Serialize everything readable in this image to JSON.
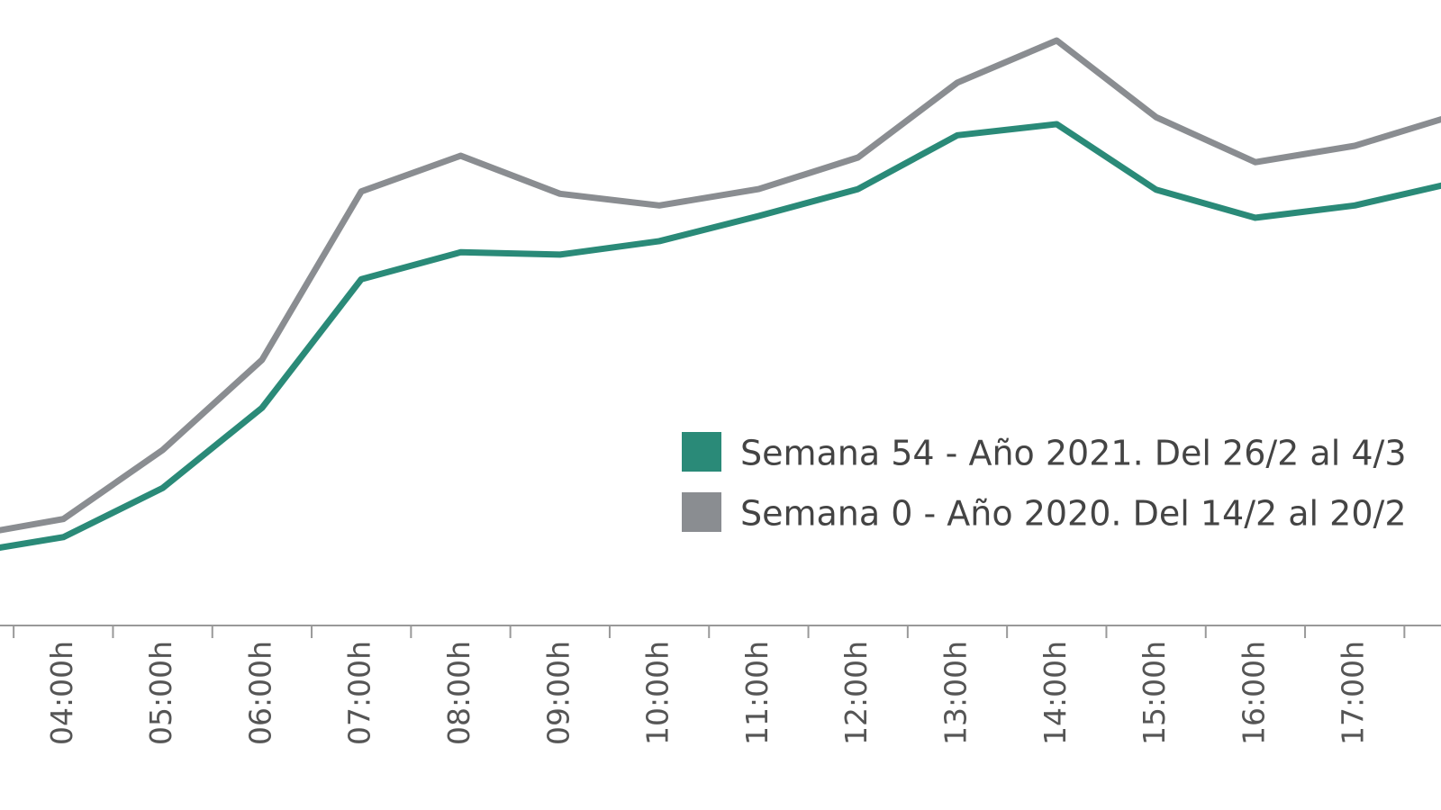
{
  "chart_data": {
    "type": "line",
    "categories": [
      null,
      "04:00h",
      "05:00h",
      "06:00h",
      "07:00h",
      "08:00h",
      "09:00h",
      "10:00h",
      "11:00h",
      "12:00h",
      "13:00h",
      "14:00h",
      "15:00h",
      "16:00h",
      "17:00h",
      null
    ],
    "series": [
      {
        "name": "Semana 54 - Año 2021. Del 26/2 al 4/3",
        "color": "#2a8a78",
        "values": [
          12.3,
          15.1,
          23.5,
          37.2,
          59.2,
          63.8,
          63.4,
          65.7,
          70,
          74.6,
          83.8,
          85.7,
          74.5,
          69.7,
          71.8,
          75.7
        ]
      },
      {
        "name": "Semana 0 - Año 2020. Del 14/2 al 20/2",
        "color": "#8a8d91",
        "values": [
          15.2,
          18.2,
          30,
          45.4,
          74.2,
          80.3,
          73.8,
          71.8,
          74.6,
          80,
          92.8,
          100,
          86.9,
          79.2,
          82,
          87.2
        ]
      }
    ],
    "ylim": [
      0,
      100
    ]
  }
}
